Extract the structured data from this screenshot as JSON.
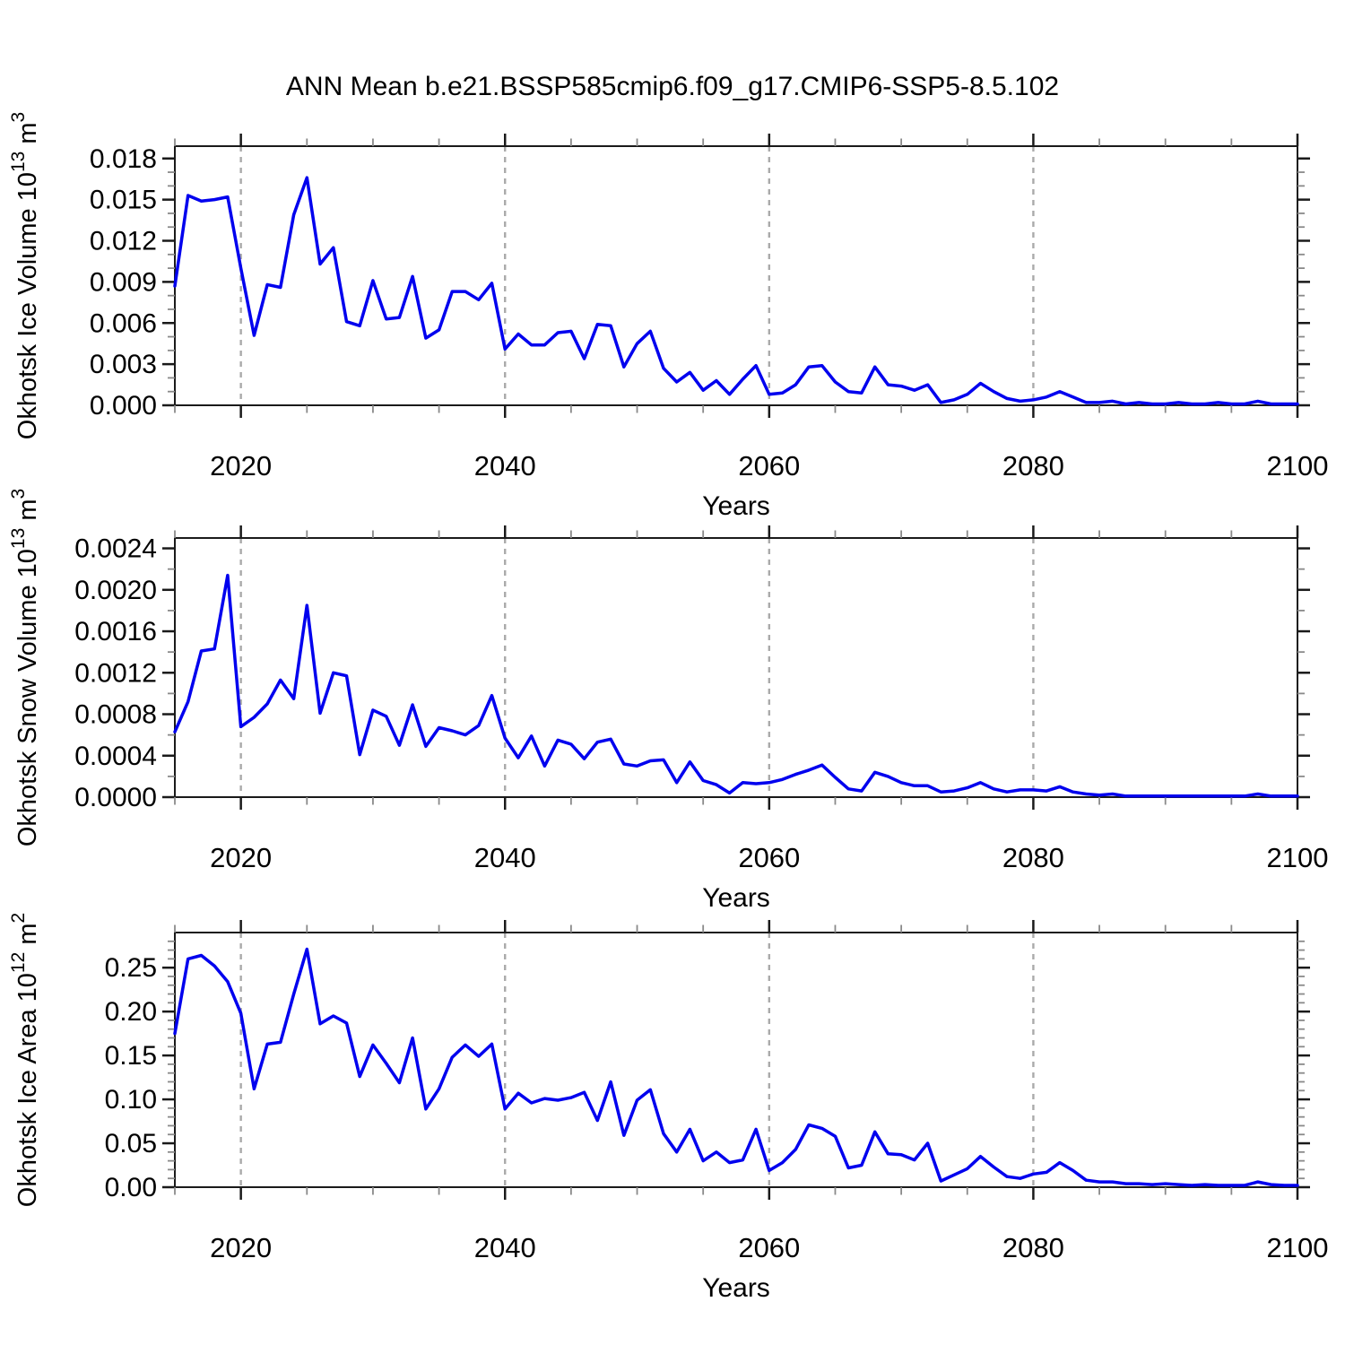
{
  "figure": {
    "title": "ANN Mean b.e21.BSSP585cmip6.f09_g17.CMIP6-SSP5-8.5.102",
    "line_color": "#0000ee",
    "frame_color": "#1a1a1a",
    "minor_tick_color": "#8a8a8a",
    "grid_color": "#aaaaaa",
    "background": "#ffffff",
    "x_axis_label": "Years"
  },
  "chart_data": [
    {
      "id": "ice-volume",
      "type": "line",
      "title": "",
      "xlabel": "Years",
      "ylabel": "Okhotsk Ice Volume 10^13 m^3",
      "ylabel_parts": [
        {
          "t": "Okhotsk Ice Volume 10",
          "sup": false
        },
        {
          "t": "13",
          "sup": true
        },
        {
          "t": " m",
          "sup": false
        },
        {
          "t": "3",
          "sup": true
        }
      ],
      "xlim": [
        2015,
        2100
      ],
      "ylim": [
        0,
        0.0189
      ],
      "ytick_labels": [
        "0.000",
        "0.003",
        "0.006",
        "0.009",
        "0.012",
        "0.015",
        "0.018"
      ],
      "ytick_values": [
        0,
        0.003,
        0.006,
        0.009,
        0.012,
        0.015,
        0.018
      ],
      "y_major_step": 0.003,
      "y_minor_step": 0.001,
      "xticks": [
        2020,
        2040,
        2060,
        2080,
        2100
      ],
      "x_minor_step": 5,
      "grid_years": [
        2020,
        2040,
        2060,
        2080
      ],
      "grid": "vertical-dashed",
      "legend": "none",
      "x": [
        2015,
        2016,
        2017,
        2018,
        2019,
        2020,
        2021,
        2022,
        2023,
        2024,
        2025,
        2026,
        2027,
        2028,
        2029,
        2030,
        2031,
        2032,
        2033,
        2034,
        2035,
        2036,
        2037,
        2038,
        2039,
        2040,
        2041,
        2042,
        2043,
        2044,
        2045,
        2046,
        2047,
        2048,
        2049,
        2050,
        2051,
        2052,
        2053,
        2054,
        2055,
        2056,
        2057,
        2058,
        2059,
        2060,
        2061,
        2062,
        2063,
        2064,
        2065,
        2066,
        2067,
        2068,
        2069,
        2070,
        2071,
        2072,
        2073,
        2074,
        2075,
        2076,
        2077,
        2078,
        2079,
        2080,
        2081,
        2082,
        2083,
        2084,
        2085,
        2086,
        2087,
        2088,
        2089,
        2090,
        2091,
        2092,
        2093,
        2094,
        2095,
        2096,
        2097,
        2098,
        2099,
        2100
      ],
      "values": [
        0.0087,
        0.0153,
        0.0149,
        0.015,
        0.0152,
        0.01,
        0.0051,
        0.0088,
        0.0086,
        0.0139,
        0.0166,
        0.0103,
        0.0115,
        0.0061,
        0.0058,
        0.0091,
        0.0063,
        0.0064,
        0.0094,
        0.0049,
        0.0055,
        0.0083,
        0.0083,
        0.0077,
        0.0089,
        0.0041,
        0.0052,
        0.0044,
        0.0044,
        0.0053,
        0.0054,
        0.0034,
        0.0059,
        0.0058,
        0.0028,
        0.0045,
        0.0054,
        0.0027,
        0.0017,
        0.0024,
        0.0011,
        0.0018,
        0.0008,
        0.0019,
        0.0029,
        0.0008,
        0.0009,
        0.0015,
        0.0028,
        0.0029,
        0.0017,
        0.001,
        0.0009,
        0.0028,
        0.0015,
        0.0014,
        0.0011,
        0.0015,
        0.0002,
        0.0004,
        0.0008,
        0.0016,
        0.001,
        0.0005,
        0.0003,
        0.0004,
        0.0006,
        0.001,
        0.0006,
        0.0002,
        0.0002,
        0.0003,
        0.0001,
        0.0002,
        0.0001,
        0.0001,
        0.0002,
        0.0001,
        0.0001,
        0.0002,
        0.0001,
        0.0001,
        0.0003,
        0.0001,
        0.0001,
        0.0001
      ]
    },
    {
      "id": "snow-volume",
      "type": "line",
      "title": "",
      "xlabel": "Years",
      "ylabel": "Okhotsk Snow Volume 10^13 m^3",
      "ylabel_parts": [
        {
          "t": "Okhotsk Snow Volume 10",
          "sup": false
        },
        {
          "t": "13",
          "sup": true
        },
        {
          "t": " m",
          "sup": false
        },
        {
          "t": "3",
          "sup": true
        }
      ],
      "xlim": [
        2015,
        2100
      ],
      "ylim": [
        0,
        0.0025
      ],
      "ytick_labels": [
        "0.0000",
        "0.0004",
        "0.0008",
        "0.0012",
        "0.0016",
        "0.0020",
        "0.0024"
      ],
      "ytick_values": [
        0,
        0.0004,
        0.0008,
        0.0012,
        0.0016,
        0.002,
        0.0024
      ],
      "y_major_step": 0.0004,
      "y_minor_step": 0.0002,
      "xticks": [
        2020,
        2040,
        2060,
        2080,
        2100
      ],
      "x_minor_step": 5,
      "grid_years": [
        2020,
        2040,
        2060,
        2080
      ],
      "grid": "vertical-dashed",
      "legend": "none",
      "x": [
        2015,
        2016,
        2017,
        2018,
        2019,
        2020,
        2021,
        2022,
        2023,
        2024,
        2025,
        2026,
        2027,
        2028,
        2029,
        2030,
        2031,
        2032,
        2033,
        2034,
        2035,
        2036,
        2037,
        2038,
        2039,
        2040,
        2041,
        2042,
        2043,
        2044,
        2045,
        2046,
        2047,
        2048,
        2049,
        2050,
        2051,
        2052,
        2053,
        2054,
        2055,
        2056,
        2057,
        2058,
        2059,
        2060,
        2061,
        2062,
        2063,
        2064,
        2065,
        2066,
        2067,
        2068,
        2069,
        2070,
        2071,
        2072,
        2073,
        2074,
        2075,
        2076,
        2077,
        2078,
        2079,
        2080,
        2081,
        2082,
        2083,
        2084,
        2085,
        2086,
        2087,
        2088,
        2089,
        2090,
        2091,
        2092,
        2093,
        2094,
        2095,
        2096,
        2097,
        2098,
        2099,
        2100
      ],
      "values": [
        0.00063,
        0.00092,
        0.00141,
        0.00143,
        0.00214,
        0.00068,
        0.00077,
        0.0009,
        0.00113,
        0.00095,
        0.00185,
        0.00081,
        0.0012,
        0.00117,
        0.00041,
        0.00084,
        0.00078,
        0.0005,
        0.00089,
        0.00049,
        0.00067,
        0.00064,
        0.0006,
        0.00069,
        0.00098,
        0.00057,
        0.00038,
        0.00059,
        0.0003,
        0.00055,
        0.00051,
        0.00037,
        0.00053,
        0.00056,
        0.00032,
        0.0003,
        0.00035,
        0.00036,
        0.00014,
        0.00034,
        0.00016,
        0.00012,
        4e-05,
        0.00014,
        0.00013,
        0.00014,
        0.00017,
        0.00022,
        0.00026,
        0.00031,
        0.00019,
        8e-05,
        6e-05,
        0.00024,
        0.0002,
        0.00014,
        0.00011,
        0.00011,
        5e-05,
        6e-05,
        9e-05,
        0.00014,
        8e-05,
        5e-05,
        7e-05,
        7e-05,
        6e-05,
        0.0001,
        5e-05,
        3e-05,
        2e-05,
        3e-05,
        1e-05,
        1e-05,
        1e-05,
        1e-05,
        1e-05,
        1e-05,
        1e-05,
        1e-05,
        1e-05,
        1e-05,
        3e-05,
        1e-05,
        1e-05,
        1e-05
      ]
    },
    {
      "id": "ice-area",
      "type": "line",
      "title": "",
      "xlabel": "Years",
      "ylabel": "Okhotsk Ice Area 10^12 m^2",
      "ylabel_parts": [
        {
          "t": "Okhotsk Ice Area 10",
          "sup": false
        },
        {
          "t": "12",
          "sup": true
        },
        {
          "t": " m",
          "sup": false
        },
        {
          "t": "2",
          "sup": true
        }
      ],
      "xlim": [
        2015,
        2100
      ],
      "ylim": [
        0,
        0.29
      ],
      "ytick_labels": [
        "0.00",
        "0.05",
        "0.10",
        "0.15",
        "0.20",
        "0.25"
      ],
      "ytick_values": [
        0,
        0.05,
        0.1,
        0.15,
        0.2,
        0.25
      ],
      "y_major_step": 0.05,
      "y_minor_step": 0.01,
      "xticks": [
        2020,
        2040,
        2060,
        2080,
        2100
      ],
      "x_minor_step": 5,
      "grid_years": [
        2020,
        2040,
        2060,
        2080
      ],
      "grid": "vertical-dashed",
      "legend": "none",
      "x": [
        2015,
        2016,
        2017,
        2018,
        2019,
        2020,
        2021,
        2022,
        2023,
        2024,
        2025,
        2026,
        2027,
        2028,
        2029,
        2030,
        2031,
        2032,
        2033,
        2034,
        2035,
        2036,
        2037,
        2038,
        2039,
        2040,
        2041,
        2042,
        2043,
        2044,
        2045,
        2046,
        2047,
        2048,
        2049,
        2050,
        2051,
        2052,
        2053,
        2054,
        2055,
        2056,
        2057,
        2058,
        2059,
        2060,
        2061,
        2062,
        2063,
        2064,
        2065,
        2066,
        2067,
        2068,
        2069,
        2070,
        2071,
        2072,
        2073,
        2074,
        2075,
        2076,
        2077,
        2078,
        2079,
        2080,
        2081,
        2082,
        2083,
        2084,
        2085,
        2086,
        2087,
        2088,
        2089,
        2090,
        2091,
        2092,
        2093,
        2094,
        2095,
        2096,
        2097,
        2098,
        2099,
        2100
      ],
      "values": [
        0.175,
        0.26,
        0.264,
        0.252,
        0.234,
        0.198,
        0.112,
        0.163,
        0.165,
        0.22,
        0.271,
        0.186,
        0.195,
        0.187,
        0.126,
        0.162,
        0.141,
        0.119,
        0.17,
        0.089,
        0.112,
        0.148,
        0.162,
        0.149,
        0.163,
        0.089,
        0.107,
        0.096,
        0.101,
        0.099,
        0.102,
        0.108,
        0.076,
        0.12,
        0.059,
        0.099,
        0.111,
        0.061,
        0.04,
        0.066,
        0.03,
        0.04,
        0.028,
        0.031,
        0.066,
        0.019,
        0.028,
        0.043,
        0.071,
        0.067,
        0.058,
        0.022,
        0.025,
        0.063,
        0.038,
        0.037,
        0.031,
        0.05,
        0.007,
        0.014,
        0.021,
        0.035,
        0.023,
        0.012,
        0.01,
        0.015,
        0.017,
        0.028,
        0.019,
        0.008,
        0.006,
        0.006,
        0.004,
        0.004,
        0.003,
        0.004,
        0.003,
        0.002,
        0.003,
        0.002,
        0.002,
        0.002,
        0.006,
        0.003,
        0.002,
        0.002
      ]
    }
  ]
}
